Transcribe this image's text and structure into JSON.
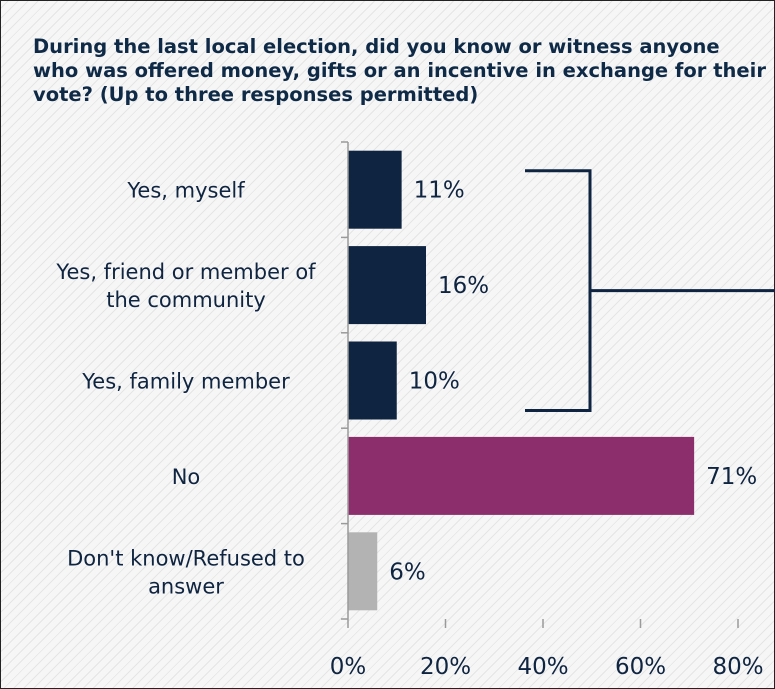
{
  "chart_data": {
    "type": "bar",
    "orientation": "horizontal",
    "title": "During the last local election, did you know or witness anyone who was offered money, gifts or an incentive in exchange for their vote? (Up to three responses permitted)",
    "categories": [
      [
        "Yes, myself"
      ],
      [
        "Yes, friend or member of",
        "the community"
      ],
      [
        "Yes, family member"
      ],
      [
        "No"
      ],
      [
        "Don't know/Refused to",
        "answer"
      ]
    ],
    "values": [
      11,
      16,
      10,
      71,
      6
    ],
    "value_labels": [
      "11%",
      "16%",
      "10%",
      "71%",
      "6%"
    ],
    "colors": [
      "#0f2440",
      "#0f2440",
      "#0f2440",
      "#8b2e6b",
      "#b3b3b3"
    ],
    "xlim": [
      0,
      80
    ],
    "xticks": [
      "0%",
      "20%",
      "40%",
      "60%",
      "80%"
    ],
    "grid": false,
    "bracket_groups": [
      [
        0,
        1,
        2
      ]
    ]
  }
}
